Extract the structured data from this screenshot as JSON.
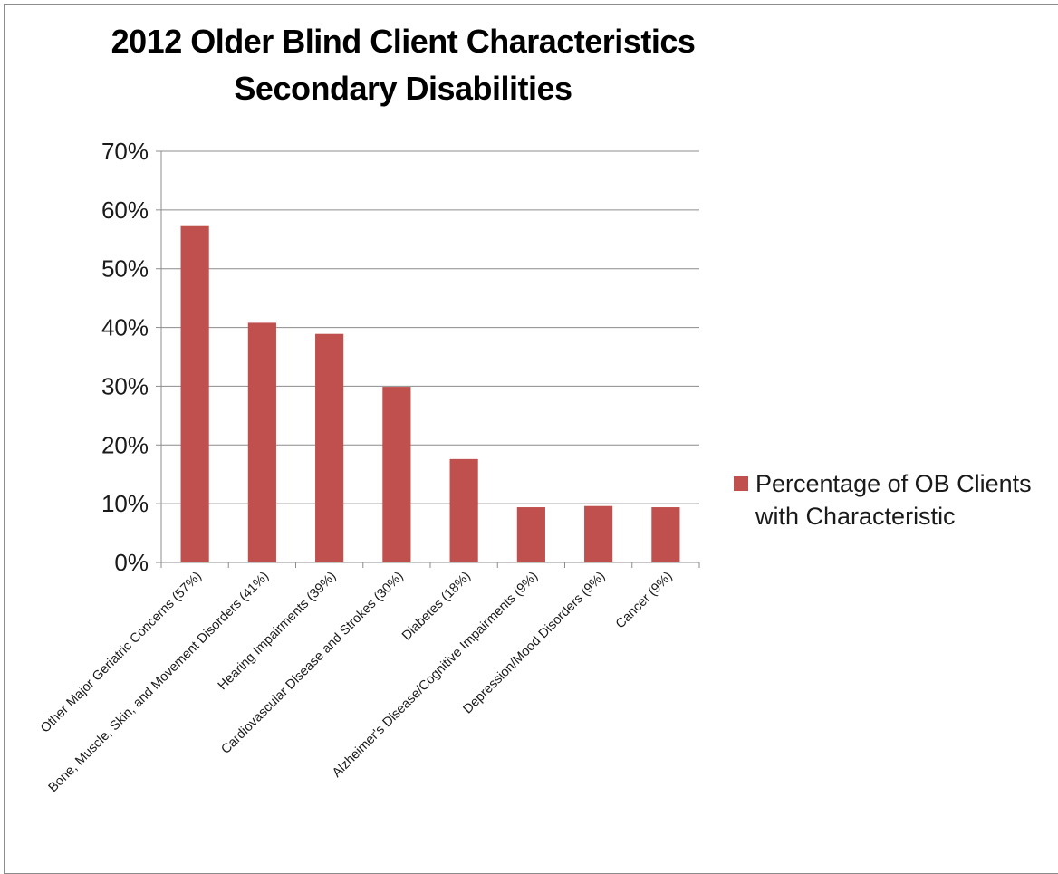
{
  "chart_data": {
    "type": "bar",
    "title": "2012 Older Blind Client Characteristics",
    "subtitle": "Secondary Disabilities",
    "categories": [
      "Other Major Geriatric Concerns (57%)",
      "Bone, Muscle, Skin, and Movement Disorders (41%)",
      "Hearing Impairments (39%)",
      "Cardiovascular Disease and Strokes (30%)",
      "Diabetes (18%)",
      "Alzheimer's Disease/Cognitive Impairments (9%)",
      "Depression/Mood Disorders (9%)",
      "Cancer (9%)"
    ],
    "series": [
      {
        "name": "Percentage of OB Clients with Characteristic",
        "values": [
          0.574,
          0.408,
          0.389,
          0.299,
          0.176,
          0.094,
          0.096,
          0.094
        ],
        "color": "#c0504d"
      }
    ],
    "ylim": [
      0,
      0.7
    ],
    "yticks": [
      "0%",
      "10%",
      "20%",
      "30%",
      "40%",
      "50%",
      "60%",
      "70%"
    ],
    "grid": true,
    "legend_position": "right"
  }
}
